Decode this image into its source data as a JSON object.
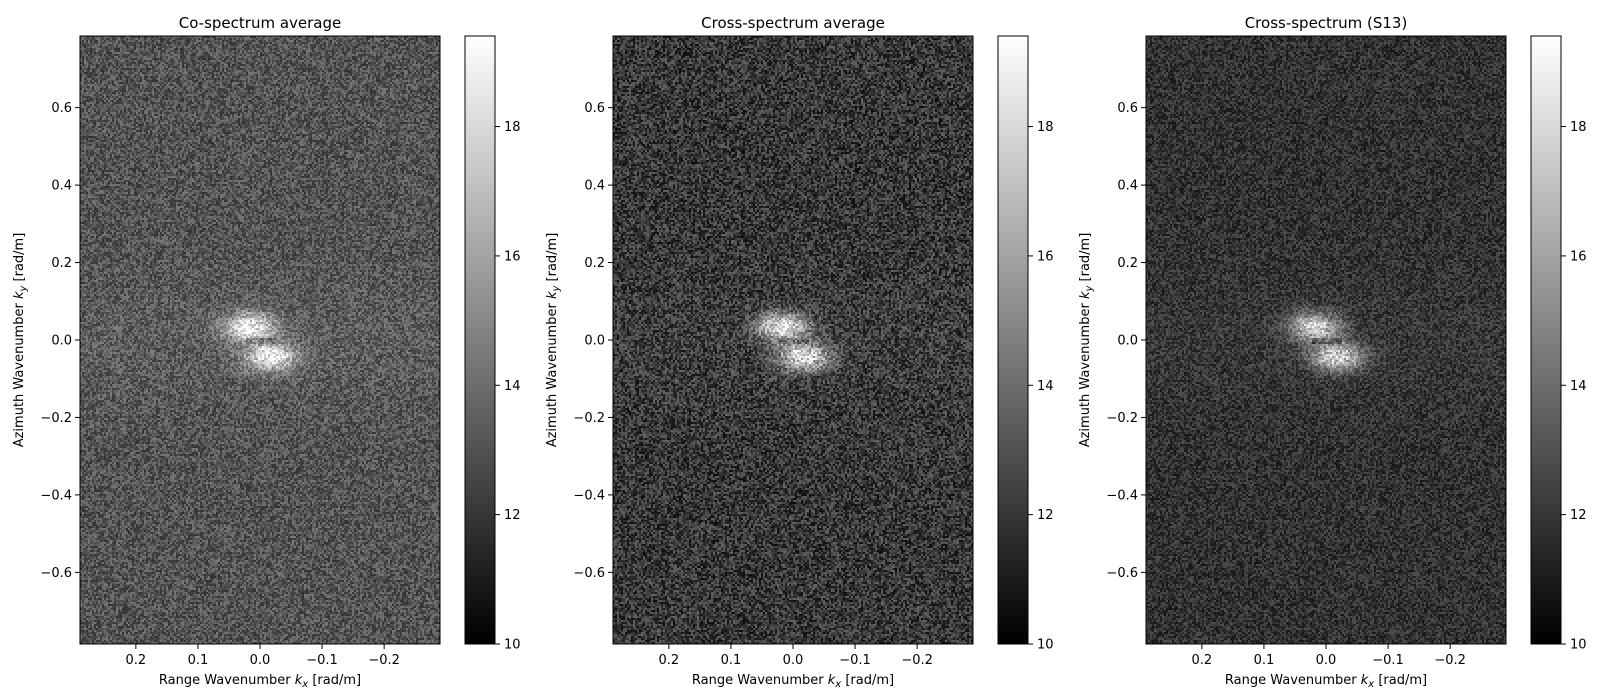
{
  "panels": [
    {
      "title": "Co-spectrum average",
      "style": {
        "base": 84,
        "spread": 36,
        "peak": 150,
        "stripe": 10
      }
    },
    {
      "title": "Cross-spectrum average",
      "style": {
        "base": 56,
        "spread": 44,
        "peak": 165,
        "stripe": 6
      }
    },
    {
      "title": "Cross-spectrum (S13)",
      "style": {
        "base": 50,
        "spread": 30,
        "peak": 160,
        "stripe": 6
      }
    }
  ],
  "chart_data": [
    {
      "type": "heatmap",
      "title": "Co-spectrum average",
      "xlabel": "Range Wavenumber k_x [rad/m]",
      "ylabel": "Azimuth Wavenumber k_y [rad/m]",
      "xlim": [
        0.29,
        -0.29
      ],
      "ylim": [
        -0.785,
        0.785
      ],
      "xticks": [
        0.2,
        0.1,
        0.0,
        -0.1,
        -0.2
      ],
      "xticklabels": [
        "0.2",
        "0.1",
        "0.0",
        "−0.1",
        "−0.2"
      ],
      "yticks": [
        0.6,
        0.4,
        0.2,
        0.0,
        -0.2,
        -0.4,
        -0.6
      ],
      "yticklabels": [
        "0.6",
        "0.4",
        "0.2",
        "0.0",
        "−0.2",
        "−0.4",
        "−0.6"
      ],
      "colorbar": {
        "range": [
          10,
          19.4
        ],
        "ticks": [
          10,
          12,
          14,
          16,
          18
        ],
        "ticklabels": [
          "10",
          "12",
          "14",
          "16",
          "18"
        ],
        "cmap": "gray"
      },
      "background_level": 13.5,
      "peaks": [
        {
          "x": 0.02,
          "y": 0.04,
          "value": 18.5
        },
        {
          "x": -0.01,
          "y": -0.04,
          "value": 18.5
        }
      ]
    },
    {
      "type": "heatmap",
      "title": "Cross-spectrum average",
      "xlabel": "Range Wavenumber k_x [rad/m]",
      "ylabel": "Azimuth Wavenumber k_y [rad/m]",
      "xlim": [
        0.29,
        -0.29
      ],
      "ylim": [
        -0.785,
        0.785
      ],
      "xticks": [
        0.2,
        0.1,
        0.0,
        -0.1,
        -0.2
      ],
      "xticklabels": [
        "0.2",
        "0.1",
        "0.0",
        "−0.1",
        "−0.2"
      ],
      "yticks": [
        0.6,
        0.4,
        0.2,
        0.0,
        -0.2,
        -0.4,
        -0.6
      ],
      "yticklabels": [
        "0.6",
        "0.4",
        "0.2",
        "0.0",
        "−0.2",
        "−0.4",
        "−0.6"
      ],
      "colorbar": {
        "range": [
          10,
          19.4
        ],
        "ticks": [
          10,
          12,
          14,
          16,
          18
        ],
        "ticklabels": [
          "10",
          "12",
          "14",
          "16",
          "18"
        ],
        "cmap": "gray"
      },
      "background_level": 12.8,
      "peaks": [
        {
          "x": 0.02,
          "y": 0.04,
          "value": 18.8
        },
        {
          "x": -0.01,
          "y": -0.04,
          "value": 18.8
        }
      ]
    },
    {
      "type": "heatmap",
      "title": "Cross-spectrum (S13)",
      "xlabel": "Range Wavenumber k_x [rad/m]",
      "ylabel": "Azimuth Wavenumber k_y [rad/m]",
      "xlim": [
        0.29,
        -0.29
      ],
      "ylim": [
        -0.785,
        0.785
      ],
      "xticks": [
        0.2,
        0.1,
        0.0,
        -0.1,
        -0.2
      ],
      "xticklabels": [
        "0.2",
        "0.1",
        "0.0",
        "−0.1",
        "−0.2"
      ],
      "yticks": [
        0.6,
        0.4,
        0.2,
        0.0,
        -0.2,
        -0.4,
        -0.6
      ],
      "yticklabels": [
        "0.6",
        "0.4",
        "0.2",
        "0.0",
        "−0.2",
        "−0.4",
        "−0.6"
      ],
      "colorbar": {
        "range": [
          10,
          19.4
        ],
        "ticks": [
          10,
          12,
          14,
          16,
          18
        ],
        "ticklabels": [
          "10",
          "12",
          "14",
          "16",
          "18"
        ],
        "cmap": "gray"
      },
      "background_level": 12.6,
      "peaks": [
        {
          "x": 0.02,
          "y": 0.04,
          "value": 18.6
        },
        {
          "x": -0.01,
          "y": -0.04,
          "value": 18.6
        }
      ]
    }
  ]
}
